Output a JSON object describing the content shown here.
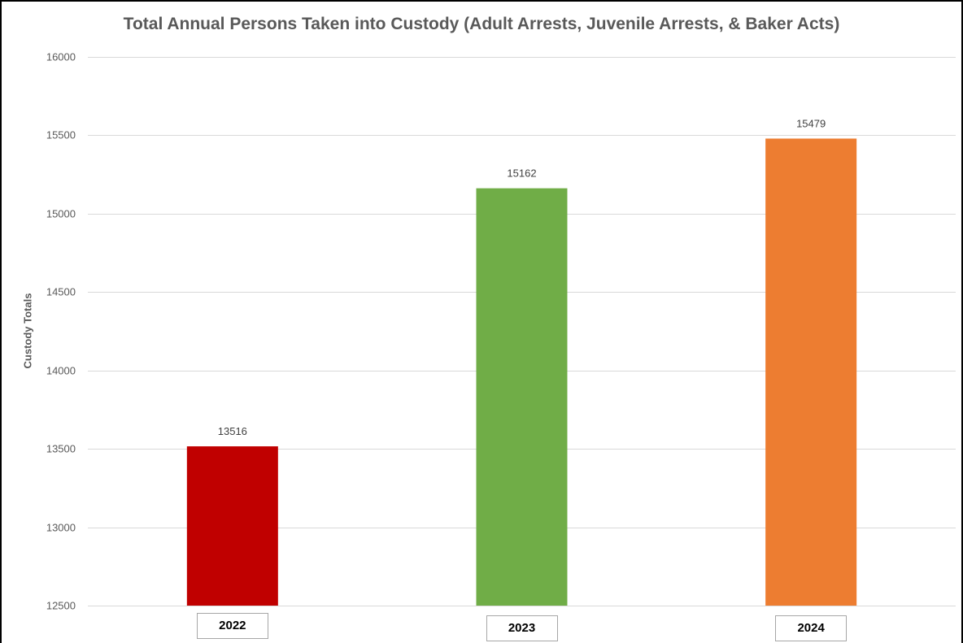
{
  "chart_data": {
    "type": "bar",
    "title": "Total Annual Persons Taken into Custody (Adult Arrests, Juvenile Arrests, & Baker Acts)",
    "ylabel": "Custody Totals",
    "xlabel": "",
    "categories": [
      "2022",
      "2023",
      "2024"
    ],
    "values": [
      13516,
      15162,
      15479
    ],
    "data_labels": [
      "13516",
      "15162",
      "15479"
    ],
    "bar_colors": [
      "#c00000",
      "#70ad47",
      "#ed7d31"
    ],
    "ylim": [
      12500,
      16000
    ],
    "yticks": [
      12500,
      13000,
      13500,
      14000,
      14500,
      15000,
      15500,
      16000
    ],
    "ytick_labels": [
      "12500",
      "13000",
      "13500",
      "14000",
      "14500",
      "15000",
      "15500",
      "16000"
    ],
    "grid": true,
    "legend": "none"
  }
}
